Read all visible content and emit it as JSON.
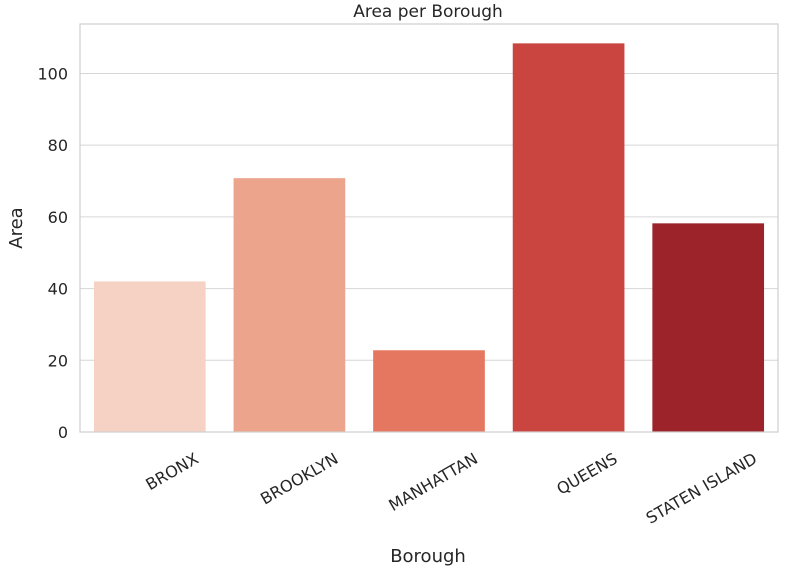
{
  "chart_data": {
    "type": "bar",
    "title": "Area per Borough",
    "xlabel": "Borough",
    "ylabel": "Area",
    "categories": [
      "BRONX",
      "BROOKLYN",
      "MANHATTAN",
      "QUEENS",
      "STATEN ISLAND"
    ],
    "values": [
      42,
      70.8,
      22.8,
      108.4,
      58.2
    ],
    "colors": [
      "#f6d2c4",
      "#eca58c",
      "#e57660",
      "#cb4540",
      "#9c2329"
    ],
    "ylim": [
      0,
      113.8
    ],
    "yticks": [
      0,
      20,
      40,
      60,
      80,
      100
    ],
    "grid": true
  }
}
